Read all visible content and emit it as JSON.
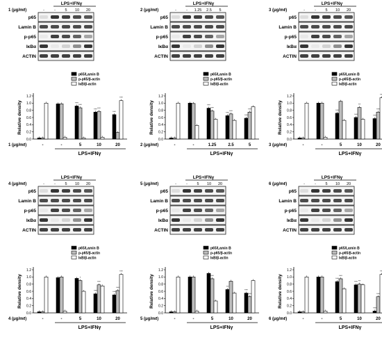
{
  "stimulus_label": "LPS+IFNγ",
  "blot_rows": [
    "p65",
    "Lamin B",
    "p-p65",
    "IκBα",
    "ACTIN"
  ],
  "conc_unit": "(μg/mℓ)",
  "colors": {
    "bar_filled": "#000000",
    "bar_gray": "#bdbdbd",
    "bar_open": "#ffffff",
    "axis": "#000000"
  },
  "chart_data": [
    {
      "type": "bar",
      "compound": "1",
      "ylabel": "Relative density",
      "ylim": [
        0,
        1.2
      ],
      "yticks": [
        "0.0",
        "0.2",
        "0.4",
        "0.6",
        "0.8",
        "1.0",
        "1.2"
      ],
      "ylim_approx": [
        0,
        1.2
      ],
      "blot_lane_labels": [
        "-",
        "-",
        "5",
        "10",
        "20"
      ],
      "categories": [
        "-",
        "-",
        "5",
        "10",
        "20"
      ],
      "legend": [
        "p65/Lamin B",
        "p-p65/β-actin",
        "IκB/β-actin"
      ],
      "series": [
        {
          "name": "p65/Lamin B",
          "values": [
            0.03,
            0.98,
            0.92,
            0.75,
            0.68
          ]
        },
        {
          "name": "p-p65/β-actin",
          "values": [
            0.03,
            0.98,
            0.87,
            0.77,
            0.18
          ]
        },
        {
          "name": "IκB/β-actin",
          "values": [
            1.0,
            0.05,
            0.03,
            0.05,
            1.07
          ]
        }
      ],
      "stars": [
        [
          "",
          "",
          "***",
          "***",
          "***"
        ],
        [
          "",
          "",
          "***",
          "***",
          ""
        ],
        [
          "",
          "",
          "",
          "",
          "***"
        ]
      ]
    },
    {
      "type": "bar",
      "compound": "2",
      "ylabel": "Relative density",
      "ylim": [
        0,
        1.2
      ],
      "yticks": [
        "0.0",
        "0.2",
        "0.4",
        "0.6",
        "0.8",
        "1.0",
        "1.2"
      ],
      "blot_lane_labels": [
        "-",
        "-",
        "1.25",
        "2.5",
        "5"
      ],
      "categories": [
        "-",
        "-",
        "1.25",
        "2.5",
        "5"
      ],
      "legend": [
        "p65/Lamin B",
        "p-p65/β-actin",
        "IκB/β-actin"
      ],
      "series": [
        {
          "name": "p65/Lamin B",
          "values": [
            0.03,
            1.0,
            0.86,
            0.65,
            0.58
          ]
        },
        {
          "name": "p-p65/β-actin",
          "values": [
            0.03,
            0.99,
            0.78,
            0.7,
            0.75
          ]
        },
        {
          "name": "IκB/β-actin",
          "values": [
            1.0,
            0.38,
            0.55,
            0.52,
            0.9
          ]
        }
      ],
      "stars": [
        [
          "",
          "",
          "***",
          "***",
          "***"
        ],
        [
          "",
          "",
          "***",
          "***",
          "***"
        ],
        [
          "",
          "",
          "",
          "",
          ""
        ]
      ]
    },
    {
      "type": "bar",
      "compound": "3",
      "ylabel": "Relative density",
      "ylim": [
        0,
        1.2
      ],
      "yticks": [
        "0.0",
        "0.2",
        "0.4",
        "0.6",
        "0.8",
        "1.0",
        "1.2"
      ],
      "blot_lane_labels": [
        "-",
        "-",
        "5",
        "10",
        "20"
      ],
      "categories": [
        "-",
        "-",
        "5",
        "10",
        "20"
      ],
      "legend": [
        "p65/Lamin B",
        "p-p65/β-actin",
        "IκB/β-actin"
      ],
      "series": [
        {
          "name": "p65/Lamin B",
          "values": [
            0.03,
            1.0,
            0.72,
            0.6,
            0.57
          ]
        },
        {
          "name": "p-p65/β-actin",
          "values": [
            0.03,
            1.0,
            1.05,
            0.88,
            0.75
          ]
        },
        {
          "name": "IκB/β-actin",
          "values": [
            1.0,
            0.05,
            0.52,
            0.55,
            1.15
          ]
        }
      ],
      "stars": [
        [
          "",
          "",
          "***",
          "***",
          "***"
        ],
        [
          "",
          "",
          "",
          "**",
          "***"
        ],
        [
          "",
          "",
          "",
          "",
          "***"
        ]
      ]
    },
    {
      "type": "bar",
      "compound": "4",
      "ylabel": "Relative density",
      "ylim": [
        0,
        1.2
      ],
      "yticks": [
        "0.0",
        "0.2",
        "0.4",
        "0.6",
        "0.8",
        "1.0",
        "1.2"
      ],
      "blot_lane_labels": [
        "-",
        "-",
        "5",
        "10",
        "20"
      ],
      "categories": [
        "-",
        "-",
        "5",
        "10",
        "20"
      ],
      "legend": [
        "p65/Lamin B",
        "p-p65/β-actin",
        "IκB/β-actin"
      ],
      "series": [
        {
          "name": "p65/Lamin B",
          "values": [
            0.03,
            0.98,
            0.96,
            0.53,
            0.5
          ]
        },
        {
          "name": "p-p65/β-actin",
          "values": [
            0.03,
            1.0,
            0.9,
            0.78,
            0.62
          ]
        },
        {
          "name": "IκB/β-actin",
          "values": [
            1.0,
            0.05,
            0.6,
            0.75,
            1.07
          ]
        }
      ],
      "stars": [
        [
          "",
          "",
          "",
          "***",
          "***"
        ],
        [
          "",
          "",
          "*",
          "***",
          "***"
        ],
        [
          "",
          "",
          "",
          "",
          "***"
        ]
      ]
    },
    {
      "type": "bar",
      "compound": "5",
      "ylabel": "Relative density",
      "ylim": [
        0,
        1.2
      ],
      "yticks": [
        "0.0",
        "0.2",
        "0.4",
        "0.6",
        "0.8",
        "1.0",
        "1.2"
      ],
      "blot_lane_labels": [
        "-",
        "-",
        "5",
        "10",
        "20"
      ],
      "categories": [
        "-",
        "-",
        "5",
        "10",
        "20"
      ],
      "legend": [
        "p65/Lamin B",
        "p-p65/β-actin",
        "IκB/β-actin"
      ],
      "series": [
        {
          "name": "p65/Lamin B",
          "values": [
            0.03,
            1.0,
            1.1,
            0.65,
            0.55
          ]
        },
        {
          "name": "p-p65/β-actin",
          "values": [
            0.03,
            1.0,
            0.95,
            0.88,
            0.45
          ]
        },
        {
          "name": "IκB/β-actin",
          "values": [
            1.0,
            0.05,
            0.33,
            0.55,
            0.9
          ]
        }
      ],
      "stars": [
        [
          "",
          "",
          "",
          "**",
          "***"
        ],
        [
          "",
          "",
          "***",
          "",
          "***"
        ],
        [
          "",
          "",
          "",
          "",
          ""
        ]
      ]
    },
    {
      "type": "bar",
      "compound": "6",
      "ylabel": "Relative density",
      "ylim": [
        0,
        1.2
      ],
      "yticks": [
        "0.0",
        "0.2",
        "0.4",
        "0.6",
        "0.8",
        "1.0",
        "1.2"
      ],
      "blot_lane_labels": [
        "-",
        "-",
        "5",
        "10",
        "20"
      ],
      "categories": [
        "-",
        "-",
        "5",
        "10",
        "20"
      ],
      "legend": [
        "p65/Lamin B",
        "p-p65/β-actin",
        "IκB/β-actin"
      ],
      "series": [
        {
          "name": "p65/Lamin B",
          "values": [
            0.03,
            1.0,
            0.87,
            0.78,
            0.05
          ]
        },
        {
          "name": "p-p65/β-actin",
          "values": [
            0.03,
            1.0,
            0.95,
            0.8,
            0.45
          ]
        },
        {
          "name": "IκB/β-actin",
          "values": [
            1.0,
            0.05,
            0.67,
            0.78,
            1.07
          ]
        }
      ],
      "stars": [
        [
          "",
          "",
          "***",
          "***",
          "***"
        ],
        [
          "",
          "",
          "***",
          "**",
          "***"
        ],
        [
          "",
          "",
          "",
          "",
          "***"
        ]
      ]
    }
  ]
}
